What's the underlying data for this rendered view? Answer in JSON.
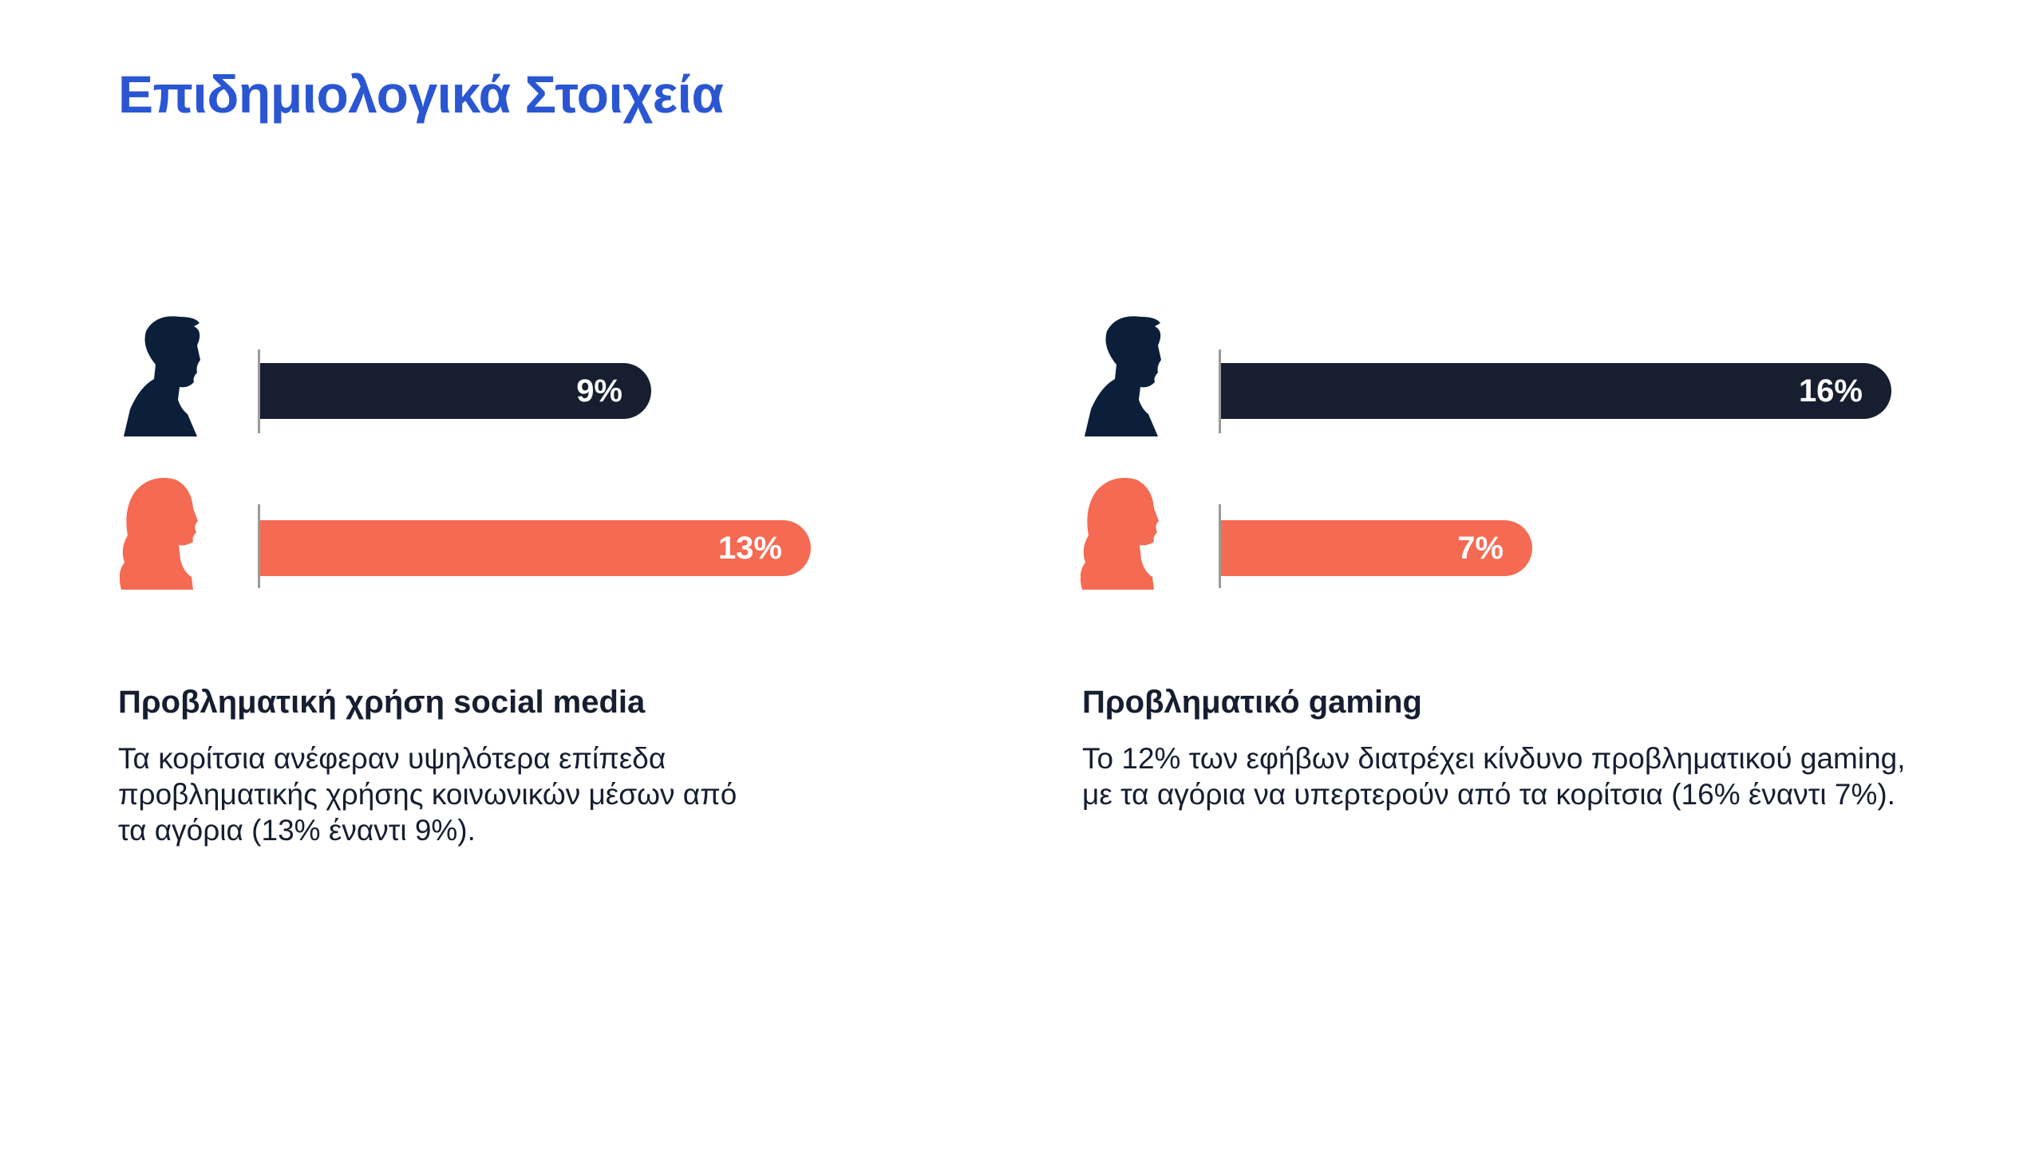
{
  "title": "Επιδημιολογικά Στοιχεία",
  "colors": {
    "title": "#2a56d2",
    "male": "#161e30",
    "female": "#f56a52",
    "male_icon": "#0b1f3a"
  },
  "panels": [
    {
      "heading": "Προβληματική χρήση social media",
      "description": "Τα κορίτσια ανέφεραν υψηλότερα επίπεδα προβληματικής χρήσης κοινωνικών μέσων από τα αγόρια (13% έναντι 9%).",
      "bars": [
        {
          "group": "male",
          "icon": "male-silhouette-icon",
          "value": 9,
          "label": "9%"
        },
        {
          "group": "female",
          "icon": "female-silhouette-icon",
          "value": 13,
          "label": "13%"
        }
      ]
    },
    {
      "heading": "Προβληματικό gaming",
      "description": "Το 12% των εφήβων διατρέχει κίνδυνο προβληματικού gaming, με τα αγόρια να υπερτερούν από τα κορίτσια (16% έναντι 7%).",
      "bars": [
        {
          "group": "male",
          "icon": "male-silhouette-icon",
          "value": 16,
          "label": "16%"
        },
        {
          "group": "female",
          "icon": "female-silhouette-icon",
          "value": 7,
          "label": "7%"
        }
      ]
    }
  ]
}
